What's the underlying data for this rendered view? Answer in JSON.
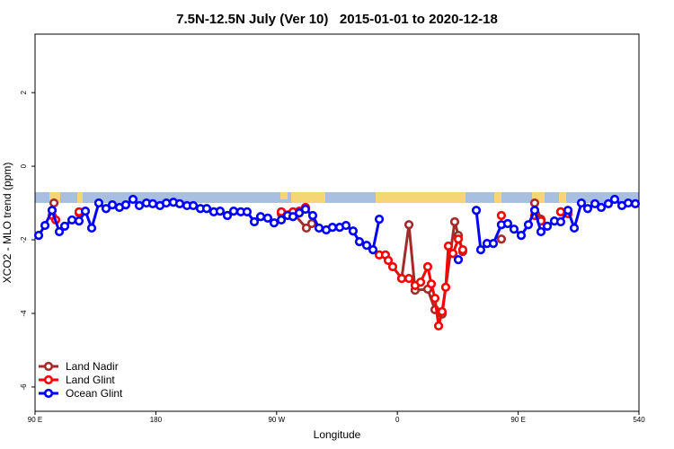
{
  "chart_data": {
    "type": "line",
    "title": "7.5N-12.5N July (Ver 10)   2015-01-01 to 2020-12-18",
    "x_label": "Longitude",
    "y_label": "XCO2 - MLO trend (ppm)",
    "xlim": [
      90,
      540
    ],
    "ylim": [
      -6.66,
      3.59
    ],
    "xticks": [
      {
        "value": 90,
        "label": "90 E"
      },
      180,
      {
        "value": 270,
        "label": "90 W"
      },
      {
        "value": 360,
        "label": "0"
      },
      {
        "value": 450,
        "label": "90 E"
      },
      540
    ],
    "yticks": [
      -6,
      -4,
      -2,
      0,
      2
    ],
    "legend": "bottom-left",
    "series": [
      {
        "name": "Land Nadir",
        "color": "#a52a2a",
        "x": [
          104.1,
          null,
          122.8,
          null,
          273.5,
          282.2,
          292.2,
          296.2,
          null,
          363.2,
          368.6,
          373.2,
          382.6,
          388.0,
          393.3,
          402.7,
          405.4,
          408.7,
          null,
          437.5,
          null,
          462.3,
          467.0,
          null,
          481.7
        ],
        "values": [
          -1.0,
          null,
          -1.27,
          null,
          -1.29,
          -1.27,
          -1.68,
          -1.56,
          null,
          -3.05,
          -1.59,
          -3.37,
          -3.34,
          -3.9,
          -4.02,
          -1.51,
          -1.88,
          -2.32,
          null,
          -1.98,
          null,
          -1.0,
          -1.44,
          null,
          -1.24
        ]
      },
      {
        "name": "Land Glint",
        "color": "#ff0000",
        "x": [
          102.7,
          105.4,
          null,
          122.8,
          null,
          273.5,
          282.2,
          286.9,
          291.5,
          null,
          346.5,
          351.1,
          353.2,
          356.5,
          363.2,
          368.6,
          373.2,
          377.3,
          382.6,
          385.3,
          388.0,
          390.7,
          393.3,
          396.0,
          398.0,
          401.4,
          405.4,
          408.7,
          null,
          437.5,
          null,
          462.3,
          467.0,
          null,
          481.7,
          487.1
        ],
        "values": [
          -1.34,
          -1.46,
          null,
          -1.24,
          null,
          -1.24,
          -1.24,
          -1.22,
          -1.12,
          null,
          -2.41,
          -2.41,
          -2.56,
          -2.73,
          -3.05,
          -3.05,
          -3.24,
          -3.15,
          -2.73,
          -3.2,
          -3.59,
          -4.34,
          -3.95,
          -3.29,
          -2.17,
          -2.37,
          -1.98,
          -2.27,
          null,
          -1.34,
          null,
          -1.34,
          -1.49,
          null,
          -1.24,
          -1.29
        ]
      },
      {
        "name": "Ocean Glint",
        "color": "#0000ff",
        "x": [
          92.7,
          97.4,
          102.7,
          108.1,
          112.1,
          117.5,
          122.8,
          127.5,
          132.2,
          137.5,
          142.9,
          147.6,
          152.9,
          157.6,
          163.0,
          167.7,
          173.0,
          177.7,
          183.1,
          187.8,
          193.1,
          197.8,
          203.2,
          207.9,
          213.2,
          217.9,
          223.2,
          227.9,
          233.3,
          238.0,
          243.3,
          248.0,
          253.4,
          258.1,
          263.4,
          268.1,
          273.5,
          278.2,
          282.2,
          286.9,
          291.5,
          296.9,
          301.6,
          307.0,
          311.6,
          317.0,
          321.7,
          327.0,
          331.7,
          337.1,
          341.8,
          346.5,
          null,
          405.4,
          null,
          418.8,
          422.1,
          426.8,
          431.5,
          437.5,
          442.2,
          446.9,
          452.3,
          457.6,
          462.3,
          467.0,
          471.7,
          477.0,
          481.7,
          487.1,
          491.8,
          497.1,
          501.8,
          507.2,
          511.9,
          517.2,
          521.9,
          527.3,
          532.0,
          537.3
        ],
        "values": [
          -1.88,
          -1.61,
          -1.2,
          -1.78,
          -1.63,
          -1.46,
          -1.49,
          -1.22,
          -1.68,
          -1.0,
          -1.15,
          -1.05,
          -1.12,
          -1.05,
          -0.9,
          -1.07,
          -1.0,
          -1.02,
          -1.07,
          -1.0,
          -0.98,
          -1.02,
          -1.07,
          -1.07,
          -1.15,
          -1.15,
          -1.24,
          -1.22,
          -1.34,
          -1.22,
          -1.24,
          -1.24,
          -1.51,
          -1.37,
          -1.41,
          -1.54,
          -1.46,
          -1.34,
          -1.37,
          -1.27,
          -1.17,
          -1.34,
          -1.68,
          -1.73,
          -1.66,
          -1.66,
          -1.61,
          -1.76,
          -2.05,
          -2.15,
          -2.27,
          -1.44,
          null,
          -2.54,
          null,
          -1.2,
          -2.27,
          -2.1,
          -2.1,
          -1.59,
          -1.56,
          -1.71,
          -1.88,
          -1.59,
          -1.2,
          -1.78,
          -1.63,
          -1.49,
          -1.51,
          -1.2,
          -1.68,
          -1.0,
          -1.15,
          -1.02,
          -1.12,
          -1.02,
          -0.9,
          -1.07,
          -1.0,
          -1.02
        ]
      }
    ]
  }
}
